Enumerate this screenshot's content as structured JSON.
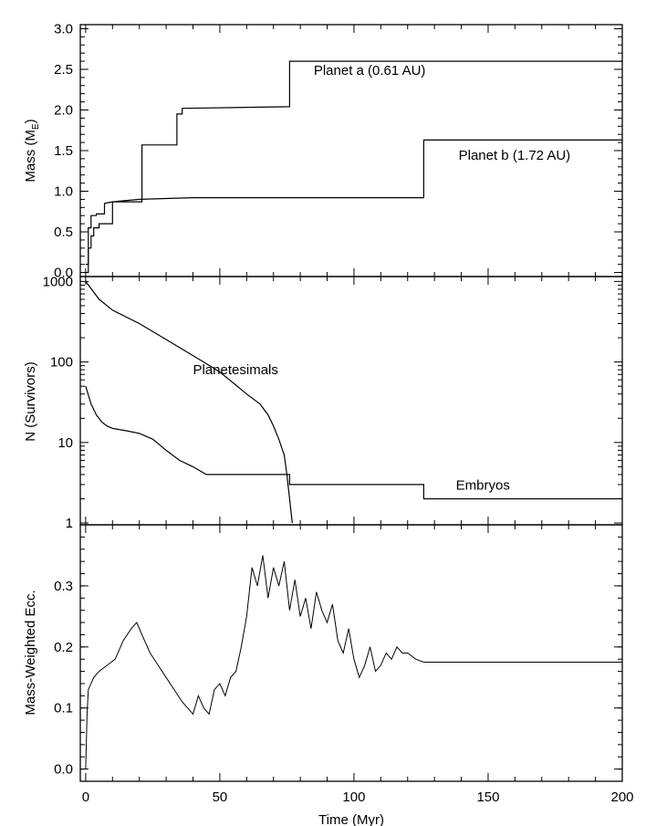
{
  "chart_data": [
    {
      "type": "line",
      "panel": "mass",
      "ylabel": "Mass (M",
      "ylabel_sub": "E",
      "ylabel_close": ")",
      "ylim": [
        -0.05,
        3.05
      ],
      "yticks": [
        "0.0",
        "0.5",
        "1.0",
        "1.5",
        "2.0",
        "2.5",
        "3.0"
      ],
      "yticks_values": [
        0.0,
        0.5,
        1.0,
        1.5,
        2.0,
        2.5,
        3.0
      ],
      "xlim": [
        -2,
        200
      ],
      "grid": false,
      "series": [
        {
          "name": "Planet a (0.61 AU)",
          "x": [
            0,
            1,
            1,
            2,
            2,
            3,
            3,
            5,
            5,
            10,
            10,
            21,
            21,
            34,
            34,
            36,
            36,
            76,
            76,
            200
          ],
          "y": [
            0.1,
            0.1,
            0.3,
            0.3,
            0.45,
            0.45,
            0.55,
            0.55,
            0.6,
            0.6,
            0.87,
            0.87,
            1.57,
            1.57,
            1.95,
            1.95,
            2.02,
            2.04,
            2.6,
            2.6
          ]
        },
        {
          "name": "Planet b (1.72 AU)",
          "x": [
            0,
            1,
            1,
            2,
            2,
            4,
            4,
            7,
            7,
            10,
            20,
            40,
            80,
            126,
            126,
            200
          ],
          "y": [
            0.0,
            0.0,
            0.55,
            0.55,
            0.7,
            0.7,
            0.72,
            0.72,
            0.85,
            0.87,
            0.9,
            0.92,
            0.92,
            0.92,
            1.63,
            1.63
          ]
        }
      ],
      "annotations": [
        {
          "text": "Planet a (0.61 AU)",
          "x": 85,
          "y": 2.43
        },
        {
          "text": "Planet b (1.72 AU)",
          "x": 139,
          "y": 1.39
        }
      ]
    },
    {
      "type": "line",
      "panel": "survivors",
      "ylabel": "N (Survivors)",
      "yscale": "log",
      "ylim": [
        0.95,
        1150
      ],
      "yticks": [
        "1",
        "10",
        "100",
        "1000"
      ],
      "yticks_values": [
        1,
        10,
        100,
        1000
      ],
      "xlim": [
        -2,
        200
      ],
      "grid": false,
      "series": [
        {
          "name": "Planetesimals",
          "x": [
            0,
            5,
            10,
            20,
            30,
            40,
            45,
            50,
            55,
            60,
            65,
            68,
            70,
            72,
            74,
            75,
            76,
            77
          ],
          "y": [
            1000,
            600,
            440,
            300,
            190,
            120,
            95,
            75,
            55,
            40,
            30,
            22,
            16,
            11,
            7,
            4,
            2,
            1
          ]
        },
        {
          "name": "Embryos",
          "x": [
            0,
            2,
            4,
            6,
            8,
            10,
            15,
            20,
            25,
            30,
            35,
            40,
            45,
            76,
            76,
            126,
            126,
            200
          ],
          "y": [
            50,
            30,
            22,
            18,
            16,
            15,
            14,
            13,
            11,
            8,
            6,
            5,
            4,
            4,
            3,
            3,
            2,
            2
          ]
        }
      ],
      "annotations": [
        {
          "text": "Planetesimals",
          "x": 40,
          "y": 70
        },
        {
          "text": "Embryos",
          "x": 138,
          "y": 2.6
        }
      ]
    },
    {
      "type": "line",
      "panel": "eccentricity",
      "ylabel": "Mass-Weighted Ecc.",
      "xlabel": "Time (Myr)",
      "ylim": [
        -0.02,
        0.4
      ],
      "yticks": [
        "0.0",
        "0.1",
        "0.2",
        "0.3"
      ],
      "yticks_values": [
        0.0,
        0.1,
        0.2,
        0.3
      ],
      "xlim": [
        -2,
        200
      ],
      "xticks": [
        "0",
        "50",
        "100",
        "150",
        "200"
      ],
      "xticks_values": [
        0,
        50,
        100,
        150,
        200
      ],
      "grid": false,
      "series": [
        {
          "name": "",
          "x": [
            0,
            0.5,
            1,
            3,
            5,
            8,
            11,
            14,
            17,
            19,
            21,
            24,
            27,
            30,
            33,
            36,
            38,
            40,
            42,
            44,
            46,
            48,
            50,
            52,
            54,
            56,
            58,
            60,
            62,
            64,
            66,
            68,
            70,
            72,
            74,
            76,
            78,
            80,
            82,
            84,
            86,
            88,
            90,
            92,
            94,
            96,
            98,
            100,
            102,
            104,
            106,
            108,
            110,
            112,
            114,
            116,
            118,
            120,
            123,
            126,
            130,
            140,
            150,
            160,
            170,
            180,
            190,
            200
          ],
          "y": [
            0.0,
            0.09,
            0.13,
            0.15,
            0.16,
            0.17,
            0.18,
            0.21,
            0.23,
            0.24,
            0.22,
            0.19,
            0.17,
            0.15,
            0.13,
            0.11,
            0.1,
            0.09,
            0.12,
            0.1,
            0.09,
            0.13,
            0.14,
            0.12,
            0.15,
            0.16,
            0.2,
            0.25,
            0.33,
            0.3,
            0.35,
            0.28,
            0.33,
            0.3,
            0.34,
            0.26,
            0.31,
            0.25,
            0.28,
            0.23,
            0.29,
            0.26,
            0.24,
            0.27,
            0.21,
            0.19,
            0.23,
            0.18,
            0.15,
            0.17,
            0.2,
            0.16,
            0.17,
            0.19,
            0.18,
            0.2,
            0.19,
            0.19,
            0.18,
            0.175,
            0.175,
            0.175,
            0.175,
            0.175,
            0.175,
            0.175,
            0.175,
            0.175
          ]
        }
      ]
    }
  ]
}
